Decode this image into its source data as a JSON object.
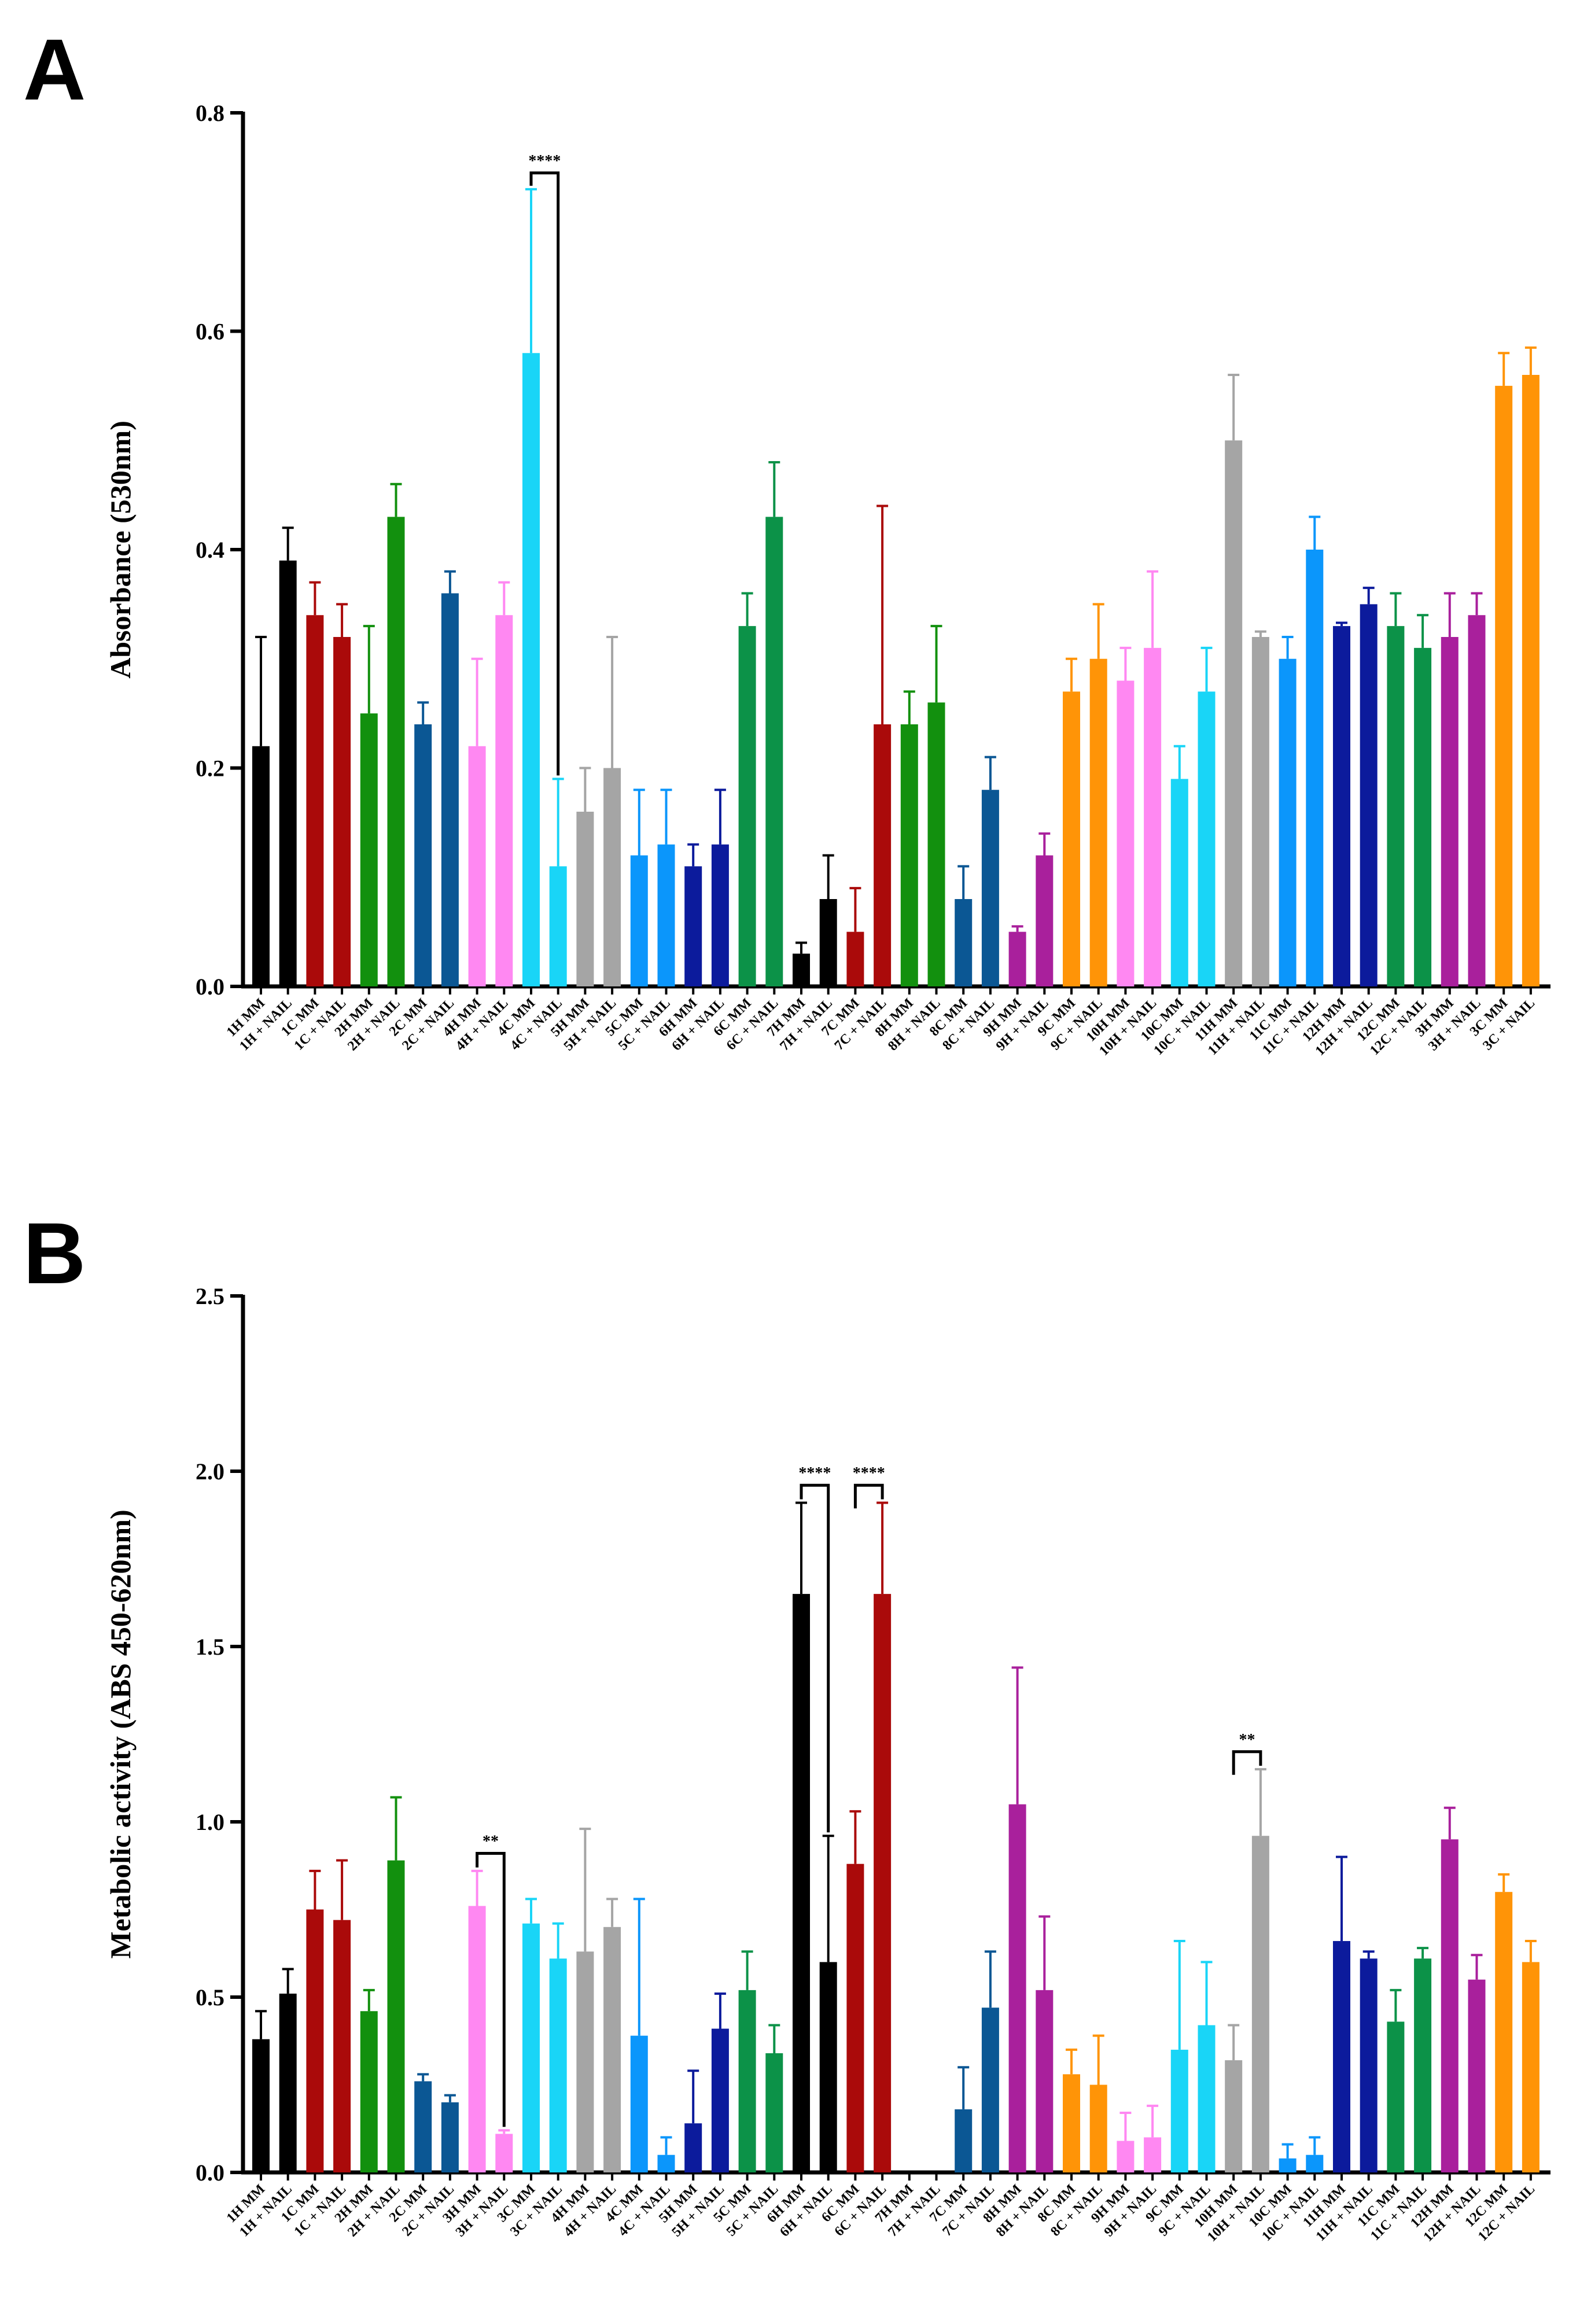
{
  "chart_data": [
    {
      "panel": "A",
      "type": "bar",
      "title": "",
      "xlabel": "",
      "ylabel": "Absorbance (530nm)",
      "ylim": [
        0,
        0.8
      ],
      "yticks": [
        "0.0",
        "0.2",
        "0.4",
        "0.6",
        "0.8"
      ],
      "grid": false,
      "categories": [
        "1H MM",
        "1H + NAIL",
        "1C MM",
        "1C + NAIL",
        "2H MM",
        "2H + NAIL",
        "2C MM",
        "2C + NAIL",
        "4H MM",
        "4H + NAIL",
        "4C MM",
        "4C + NAIL",
        "5H MM",
        "5H + NAIL",
        "5C MM",
        "5C + NAIL",
        "6H MM",
        "6H + NAIL",
        "6C MM",
        "6C + NAIL",
        "7H MM",
        "7H + NAIL",
        "7C MM",
        "7C + NAIL",
        "8H MM",
        "8H + NAIL",
        "8C MM",
        "8C + NAIL",
        "9H MM",
        "9H + NAIL",
        "9C MM",
        "9C + NAIL",
        "10H MM",
        "10H + NAIL",
        "10C MM",
        "10C + NAIL",
        "11H MM",
        "11H + NAIL",
        "11C MM",
        "11C + NAIL",
        "12H MM",
        "12H + NAIL",
        "12C MM",
        "12C + NAIL",
        "3H MM",
        "3H + NAIL",
        "3C MM",
        "3C + NAIL"
      ],
      "values": [
        0.22,
        0.39,
        0.34,
        0.32,
        0.25,
        0.43,
        0.24,
        0.36,
        0.22,
        0.34,
        0.58,
        0.11,
        0.16,
        0.2,
        0.12,
        0.13,
        0.11,
        0.13,
        0.33,
        0.43,
        0.03,
        0.08,
        0.05,
        0.24,
        0.24,
        0.26,
        0.08,
        0.18,
        0.05,
        0.12,
        0.27,
        0.3,
        0.28,
        0.31,
        0.19,
        0.27,
        0.5,
        0.32,
        0.3,
        0.4,
        0.33,
        0.35,
        0.33,
        0.31,
        0.32,
        0.34,
        0.55,
        0.56
      ],
      "errors": [
        0.1,
        0.03,
        0.03,
        0.03,
        0.08,
        0.03,
        0.02,
        0.02,
        0.08,
        0.03,
        0.15,
        0.08,
        0.04,
        0.12,
        0.06,
        0.05,
        0.02,
        0.05,
        0.03,
        0.05,
        0.01,
        0.04,
        0.04,
        0.2,
        0.03,
        0.07,
        0.03,
        0.03,
        0.005,
        0.02,
        0.03,
        0.05,
        0.03,
        0.07,
        0.03,
        0.04,
        0.06,
        0.005,
        0.02,
        0.03,
        0.003,
        0.015,
        0.03,
        0.03,
        0.04,
        0.02,
        0.03,
        0.025
      ],
      "colors": [
        "#000000",
        "#000000",
        "#aa0a0a",
        "#aa0a0a",
        "#12900e",
        "#12900e",
        "#0b5794",
        "#0b5794",
        "#ff88f2",
        "#ff88f2",
        "#19d5f7",
        "#19d5f7",
        "#a5a5a5",
        "#a5a5a5",
        "#0b96fb",
        "#0b96fb",
        "#0c1b9c",
        "#0c1b9c",
        "#0c9248",
        "#0c9248",
        "#000000",
        "#000000",
        "#aa0a0a",
        "#aa0a0a",
        "#12900e",
        "#12900e",
        "#0b5794",
        "#0b5794",
        "#a9209c",
        "#a9209c",
        "#ff9407",
        "#ff9407",
        "#ff88f2",
        "#ff88f2",
        "#19d5f7",
        "#19d5f7",
        "#a5a5a5",
        "#a5a5a5",
        "#0b96fb",
        "#0b96fb",
        "#0c1b9c",
        "#0c1b9c",
        "#0c9248",
        "#0c9248",
        "#a9209c",
        "#a9209c",
        "#ff9407",
        "#ff9407"
      ],
      "significance": [
        {
          "from": 10,
          "to": 11,
          "label": "****",
          "level": 0.745
        }
      ]
    },
    {
      "panel": "B",
      "type": "bar",
      "title": "",
      "xlabel": "",
      "ylabel": "Metabolic activity (ABS 450-620nm)",
      "ylim": [
        0,
        2.5
      ],
      "yticks": [
        "0.0",
        "0.5",
        "1.0",
        "1.5",
        "2.0",
        "2.5"
      ],
      "grid": false,
      "categories": [
        "1H MM",
        "1H + NAIL",
        "1C MM",
        "1C + NAIL",
        "2H MM",
        "2H + NAIL",
        "2C MM",
        "2C + NAIL",
        "3H MM",
        "3H + NAIL",
        "3C MM",
        "3C + NAIL",
        "4H MM",
        "4H + NAIL",
        "4C MM",
        "4C + NAIL",
        "5H MM",
        "5H + NAIL",
        "5C MM",
        "5C + NAIL",
        "6H MM",
        "6H + NAIL",
        "6C MM",
        "6C + NAIL",
        "7H MM",
        "7H + NAIL",
        "7C MM",
        "7C + NAIL",
        "8H MM",
        "8H + NAIL",
        "8C MM",
        "8C + NAIL",
        "9H MM",
        "9H + NAIL",
        "9C MM",
        "9C + NAIL",
        "10H MM",
        "10H + NAIL",
        "10C MM",
        "10C + NAIL",
        "11H MM",
        "11H + NAIL",
        "11C MM",
        "11C + NAIL",
        "12H MM",
        "12H + NAIL",
        "12C MM",
        "12C + NAIL"
      ],
      "values": [
        0.38,
        0.51,
        0.75,
        0.72,
        0.46,
        0.89,
        0.26,
        0.2,
        0.76,
        0.11,
        0.71,
        0.61,
        0.63,
        0.7,
        0.39,
        0.05,
        0.14,
        0.41,
        0.52,
        0.34,
        1.65,
        0.6,
        0.88,
        1.65,
        0,
        0,
        0.18,
        0.47,
        1.05,
        0.52,
        0.28,
        0.25,
        0.09,
        0.1,
        0.35,
        0.42,
        0.32,
        0.96,
        0.04,
        0.05,
        0.66,
        0.61,
        0.43,
        0.61,
        0.95,
        0.55,
        0.8,
        0.6
      ],
      "errors": [
        0.08,
        0.07,
        0.11,
        0.17,
        0.06,
        0.18,
        0.02,
        0.02,
        0.1,
        0.01,
        0.07,
        0.1,
        0.35,
        0.08,
        0.39,
        0.05,
        0.15,
        0.1,
        0.11,
        0.08,
        0.26,
        0.36,
        0.15,
        0.26,
        0,
        0,
        0.12,
        0.16,
        0.39,
        0.21,
        0.07,
        0.14,
        0.08,
        0.09,
        0.31,
        0.18,
        0.1,
        0.19,
        0.04,
        0.05,
        0.24,
        0.02,
        0.09,
        0.03,
        0.09,
        0.07,
        0.05,
        0.06
      ],
      "colors": [
        "#000000",
        "#000000",
        "#aa0a0a",
        "#aa0a0a",
        "#12900e",
        "#12900e",
        "#0b5794",
        "#0b5794",
        "#ff88f2",
        "#ff88f2",
        "#19d5f7",
        "#19d5f7",
        "#a5a5a5",
        "#a5a5a5",
        "#0b96fb",
        "#0b96fb",
        "#0c1b9c",
        "#0c1b9c",
        "#0c9248",
        "#0c9248",
        "#000000",
        "#000000",
        "#aa0a0a",
        "#aa0a0a",
        "#12900e",
        "#12900e",
        "#0b5794",
        "#0b5794",
        "#a9209c",
        "#a9209c",
        "#ff9407",
        "#ff9407",
        "#ff88f2",
        "#ff88f2",
        "#19d5f7",
        "#19d5f7",
        "#a5a5a5",
        "#a5a5a5",
        "#0b96fb",
        "#0b96fb",
        "#0c1b9c",
        "#0c1b9c",
        "#0c9248",
        "#0c9248",
        "#a9209c",
        "#a9209c",
        "#ff9407",
        "#ff9407"
      ],
      "significance": [
        {
          "from": 8,
          "to": 9,
          "label": "**",
          "level": 0.91
        },
        {
          "from": 20,
          "to": 21,
          "label": "****",
          "level": 1.96
        },
        {
          "from": 22,
          "to": 23,
          "label": "****",
          "level": 1.96
        },
        {
          "from": 36,
          "to": 37,
          "label": "**",
          "level": 1.2
        }
      ]
    }
  ],
  "panels": [
    {
      "letter": "A"
    },
    {
      "letter": "B"
    }
  ]
}
